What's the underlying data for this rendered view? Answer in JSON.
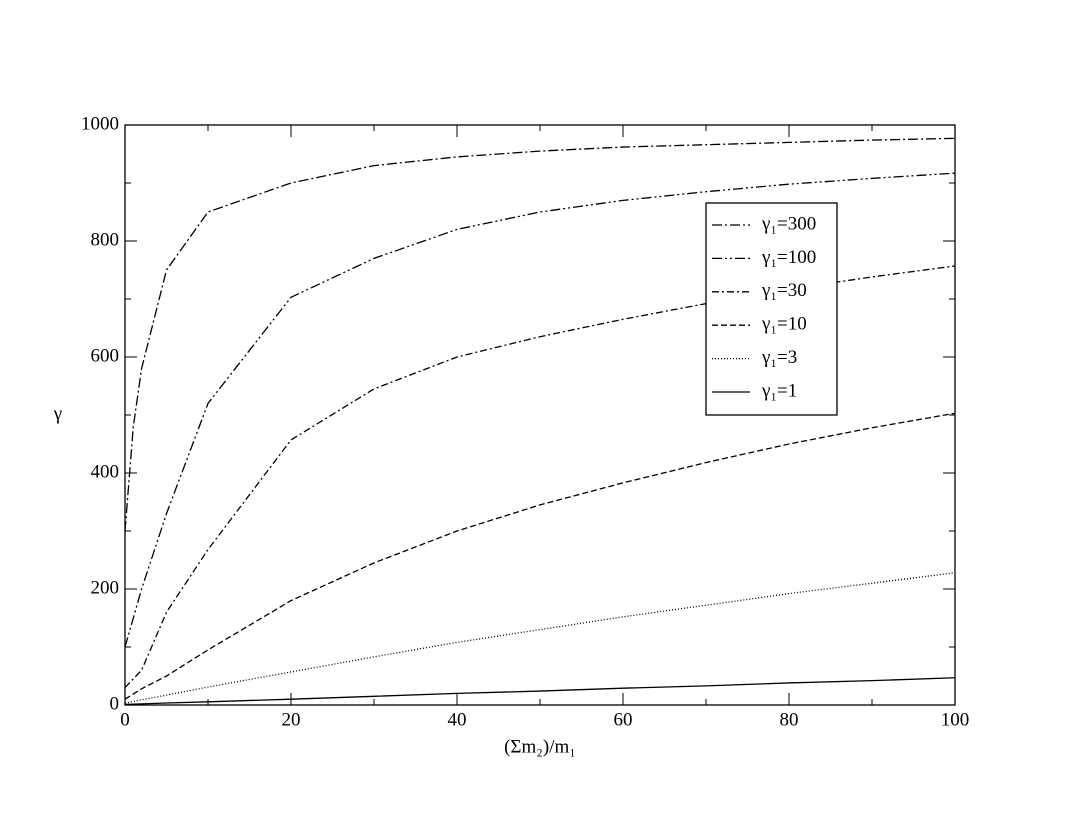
{
  "chart_data": {
    "type": "line",
    "xlabel": "(Σm₂)/m₁",
    "ylabel": "γ",
    "x": [
      0,
      1,
      2,
      5,
      10,
      20,
      30,
      40,
      50,
      60,
      70,
      80,
      90,
      100
    ],
    "series": [
      {
        "name": "γ₁=300",
        "color": "#000000",
        "dash": "10,3,2,3",
        "values": [
          300,
          480,
          580,
          750,
          850,
          900,
          930,
          945,
          955,
          962,
          966,
          970,
          974,
          977
        ]
      },
      {
        "name": "γ₁=100",
        "color": "#000000",
        "dash": "10,3,2,3,2,3",
        "values": [
          100,
          150,
          200,
          330,
          520,
          703,
          770,
          820,
          850,
          870,
          885,
          898,
          908,
          917
        ]
      },
      {
        "name": "γ₁=30",
        "color": "#000000",
        "dash": "7,3,2,3",
        "values": [
          30,
          45,
          60,
          160,
          268,
          457,
          545,
          600,
          635,
          665,
          692,
          717,
          738,
          757
        ]
      },
      {
        "name": "γ₁=10",
        "color": "#000000",
        "dash": "6,3",
        "values": [
          10,
          19,
          28,
          50,
          95,
          180,
          245,
          300,
          345,
          383,
          418,
          450,
          478,
          503
        ]
      },
      {
        "name": "γ₁=3",
        "color": "#000000",
        "dash": "1,2",
        "values": [
          3,
          6,
          9,
          17,
          31,
          57,
          83,
          108,
          130,
          152,
          172,
          192,
          210,
          228
        ]
      },
      {
        "name": "γ₁=1",
        "color": "#000000",
        "dash": "none",
        "values": [
          1,
          1.5,
          2,
          3.5,
          5.5,
          10,
          15,
          20,
          24,
          29,
          33,
          38,
          42,
          47
        ]
      }
    ],
    "xlim": [
      0,
      100
    ],
    "xticks": [
      0,
      20,
      40,
      60,
      80,
      100
    ],
    "ylim": [
      0,
      1000
    ],
    "yticks": [
      0,
      200,
      400,
      600,
      800,
      1000
    ],
    "grid": false,
    "legend": "upper right"
  }
}
